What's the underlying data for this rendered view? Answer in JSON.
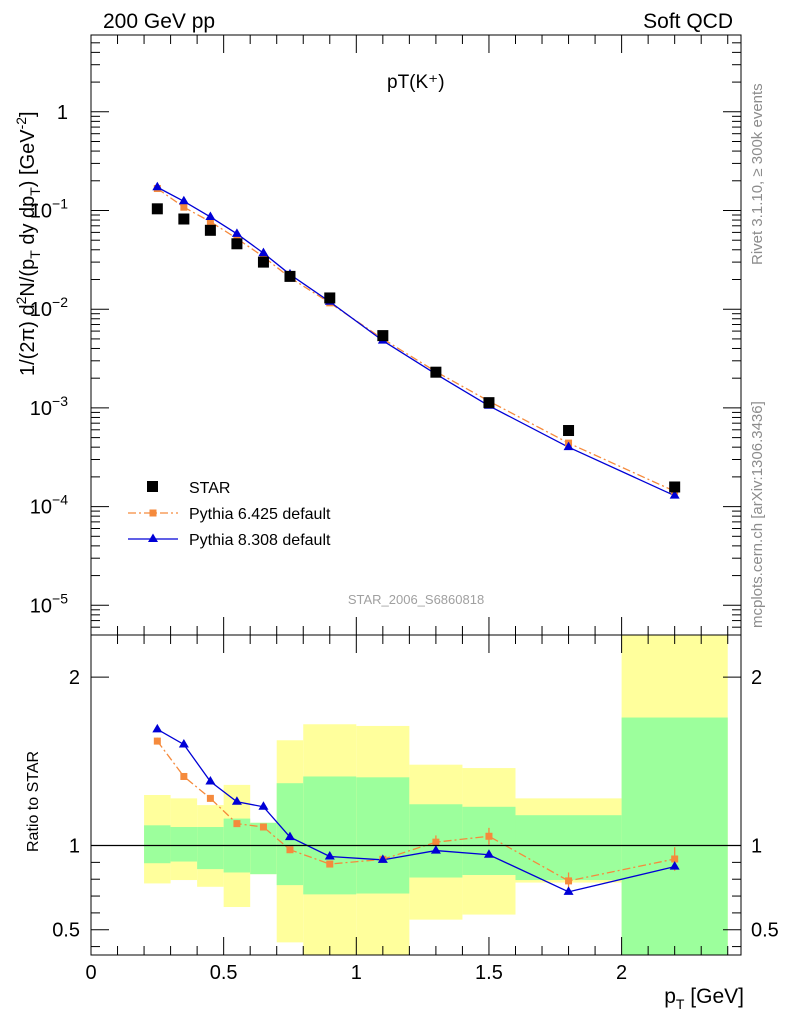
{
  "header": {
    "left": "200 GeV pp",
    "right": "Soft QCD"
  },
  "side": {
    "rivet": "Rivet 3.1.10, ≥ 300k events",
    "mcplots": "mcplots.cern.ch [arXiv:1306.3436]"
  },
  "colors": {
    "star": "#000000",
    "py6": "#f58a3c",
    "py8": "#0000d6",
    "band1": "#9cff9c",
    "band2": "#ffff9c"
  },
  "chart_data": [
    {
      "type": "scatter",
      "title": "pT(K⁺)",
      "ylabel": "1/(2π) d²N/(p_T dy dp_T) [GeV⁻²]",
      "ylabel_parts": {
        "a": "1/(2π) d",
        "b": "2",
        "c": "N/(p",
        "d": "T",
        "e": " dy dp",
        "f": "T",
        "g": ") [GeV",
        "h": "-2",
        "i": "]"
      },
      "yscale": "log",
      "ylim": [
        5e-06,
        6
      ],
      "xlim": [
        0,
        2.45
      ],
      "watermark": "STAR_2006_S6860818",
      "yticks": [
        {
          "base": "10",
          "exp": "−5",
          "value": 1e-05
        },
        {
          "base": "10",
          "exp": "−4",
          "value": 0.0001
        },
        {
          "base": "10",
          "exp": "−3",
          "value": 0.001
        },
        {
          "base": "10",
          "exp": "−2",
          "value": 0.01
        },
        {
          "base": "10",
          "exp": "−1",
          "value": 0.1
        },
        {
          "base": "1",
          "exp": "",
          "value": 1
        }
      ],
      "legend": [
        "STAR",
        "Pythia 6.425 default",
        "Pythia 8.308 default"
      ],
      "legend_position": "bottom-left",
      "series": [
        {
          "name": "STAR",
          "marker": "square",
          "x": [
            0.25,
            0.35,
            0.45,
            0.55,
            0.65,
            0.75,
            0.9,
            1.1,
            1.3,
            1.5,
            1.8,
            2.2
          ],
          "y": [
            0.104,
            0.082,
            0.063,
            0.046,
            0.03,
            0.0215,
            0.013,
            0.0054,
            0.0023,
            0.00113,
            0.00059,
            0.000158
          ]
        },
        {
          "name": "Pythia 6.425 default",
          "marker": "square-small",
          "line": "dashdot",
          "x": [
            0.25,
            0.35,
            0.45,
            0.55,
            0.65,
            0.75,
            0.9,
            1.1,
            1.3,
            1.5,
            1.8,
            2.2
          ],
          "y": [
            0.167,
            0.108,
            0.077,
            0.052,
            0.034,
            0.0209,
            0.0116,
            0.005,
            0.00233,
            0.00117,
            0.00044,
            0.000143
          ]
        },
        {
          "name": "Pythia 8.308 default",
          "marker": "triangle",
          "line": "solid",
          "x": [
            0.25,
            0.35,
            0.45,
            0.55,
            0.65,
            0.75,
            0.9,
            1.1,
            1.3,
            1.5,
            1.8,
            2.2
          ],
          "y": [
            0.172,
            0.124,
            0.086,
            0.058,
            0.037,
            0.0225,
            0.0119,
            0.0048,
            0.0022,
            0.00105,
            0.0004,
            0.000129
          ]
        }
      ]
    },
    {
      "type": "scatter",
      "ylabel": "Ratio to STAR",
      "xlabel_parts": {
        "a": "p",
        "b": "T",
        "c": " [GeV]"
      },
      "xlim": [
        0,
        2.45
      ],
      "ylim": [
        0.35,
        2.25
      ],
      "xticks": [
        {
          "label": "0",
          "value": 0
        },
        {
          "label": "0.5",
          "value": 0.5
        },
        {
          "label": "1",
          "value": 1
        },
        {
          "label": "1.5",
          "value": 1.5
        },
        {
          "label": "2",
          "value": 2
        }
      ],
      "yticks": [
        {
          "label": "0.5",
          "value": 0.5
        },
        {
          "label": "1",
          "value": 1
        },
        {
          "label": "2",
          "value": 2
        }
      ],
      "reference_line": 1,
      "bands": [
        {
          "x0": 0.2,
          "x1": 0.3,
          "stat": [
            0.895,
            1.12
          ],
          "total": [
            0.775,
            1.3
          ]
        },
        {
          "x0": 0.3,
          "x1": 0.4,
          "stat": [
            0.905,
            1.11
          ],
          "total": [
            0.795,
            1.28
          ]
        },
        {
          "x0": 0.4,
          "x1": 0.5,
          "stat": [
            0.86,
            1.11
          ],
          "total": [
            0.755,
            1.24
          ]
        },
        {
          "x0": 0.5,
          "x1": 0.6,
          "stat": [
            0.84,
            1.16
          ],
          "total": [
            0.635,
            1.36
          ]
        },
        {
          "x0": 0.6,
          "x1": 0.7,
          "stat": [
            0.83,
            1.135
          ],
          "total": [
            0.83,
            1.135
          ]
        },
        {
          "x0": 0.7,
          "x1": 0.8,
          "stat": [
            0.765,
            1.37
          ],
          "total": [
            0.425,
            1.625
          ]
        },
        {
          "x0": 0.8,
          "x1": 1.0,
          "stat": [
            0.71,
            1.41
          ],
          "total": [
            0.35,
            1.72
          ]
        },
        {
          "x0": 1.0,
          "x1": 1.2,
          "stat": [
            0.715,
            1.405
          ],
          "total": [
            0.35,
            1.71
          ]
        },
        {
          "x0": 1.2,
          "x1": 1.4,
          "stat": [
            0.81,
            1.245
          ],
          "total": [
            0.56,
            1.48
          ]
        },
        {
          "x0": 1.4,
          "x1": 1.6,
          "stat": [
            0.825,
            1.23
          ],
          "total": [
            0.59,
            1.46
          ]
        },
        {
          "x0": 1.6,
          "x1": 2.0,
          "stat": [
            0.795,
            1.18
          ],
          "total": [
            0.78,
            1.28
          ]
        },
        {
          "x0": 2.0,
          "x1": 2.4,
          "stat": [
            0.35,
            1.76
          ],
          "total": [
            0.35,
            2.25
          ]
        }
      ],
      "series": [
        {
          "name": "Pythia 6.425 default",
          "marker": "square-small",
          "line": "dashdot",
          "x": [
            0.25,
            0.35,
            0.45,
            0.55,
            0.65,
            0.75,
            0.9,
            1.1,
            1.3,
            1.5,
            1.8,
            2.2
          ],
          "y": [
            1.62,
            1.41,
            1.28,
            1.13,
            1.11,
            0.975,
            0.89,
            0.918,
            1.02,
            1.055,
            0.79,
            0.92
          ],
          "err": [
            0.02,
            0.02,
            0.02,
            0.02,
            0.02,
            0.02,
            0.02,
            0.02,
            0.04,
            0.05,
            0.05,
            0.07
          ]
        },
        {
          "name": "Pythia 8.308 default",
          "marker": "triangle",
          "line": "solid",
          "x": [
            0.25,
            0.35,
            0.45,
            0.55,
            0.65,
            0.75,
            0.9,
            1.1,
            1.3,
            1.5,
            1.8,
            2.2
          ],
          "y": [
            1.69,
            1.6,
            1.38,
            1.26,
            1.23,
            1.05,
            0.935,
            0.915,
            0.97,
            0.945,
            0.725,
            0.875
          ]
        }
      ]
    }
  ]
}
